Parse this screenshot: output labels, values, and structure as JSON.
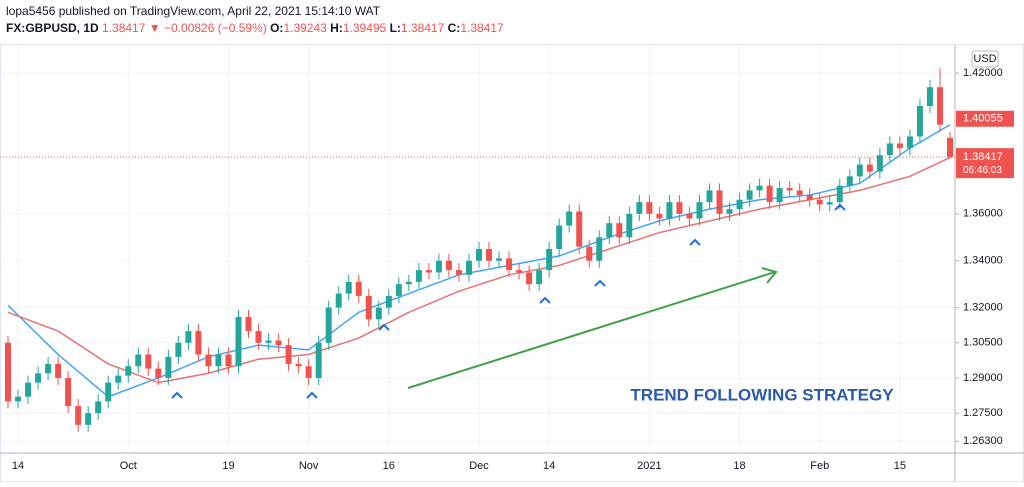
{
  "header": {
    "publisher": "lopa5456 published on TradingView.com, April 22, 2021 15:14:10 WAT",
    "symbol": "FX:GBPUSD, 1D",
    "last": "1.38417",
    "arrow": "▼",
    "change": "−0.00826 (−0.59%)",
    "o_label": "O:",
    "o": "1.39243",
    "h_label": "H:",
    "h": "1.39495",
    "l_label": "L:",
    "l": "1.38417",
    "c_label": "C:",
    "c": "1.38417"
  },
  "chart_data": {
    "type": "candlestick",
    "currency": "USD",
    "annotation": "TREND FOLLOWING STRATEGY",
    "categories": [
      null,
      "14",
      null,
      null,
      null,
      null,
      null,
      null,
      null,
      null,
      null,
      null,
      "Oct",
      null,
      null,
      null,
      null,
      null,
      null,
      null,
      null,
      null,
      "19",
      null,
      null,
      null,
      null,
      null,
      null,
      null,
      "Nov",
      null,
      null,
      null,
      null,
      null,
      null,
      null,
      "16",
      null,
      null,
      null,
      null,
      null,
      null,
      null,
      null,
      "Dec",
      null,
      null,
      null,
      null,
      null,
      null,
      "14",
      null,
      null,
      null,
      null,
      null,
      null,
      null,
      null,
      null,
      "2021",
      null,
      null,
      null,
      null,
      null,
      null,
      null,
      null,
      "18",
      null,
      null,
      null,
      null,
      null,
      null,
      null,
      "Feb",
      null,
      null,
      null,
      null,
      null,
      null,
      null,
      "15",
      null,
      null,
      null,
      null,
      null
    ],
    "open": [
      1.305,
      1.28,
      1.282,
      1.288,
      1.292,
      1.296,
      1.29,
      1.278,
      1.27,
      1.275,
      1.28,
      1.288,
      1.291,
      1.295,
      1.3,
      1.294,
      1.29,
      1.299,
      1.305,
      1.31,
      1.3,
      1.295,
      1.3,
      1.295,
      1.316,
      1.31,
      1.305,
      1.306,
      1.304,
      1.296,
      1.295,
      1.29,
      1.305,
      1.32,
      1.326,
      1.331,
      1.325,
      1.315,
      1.32,
      1.325,
      1.33,
      1.331,
      1.336,
      1.335,
      1.34,
      1.336,
      1.334,
      1.34,
      1.345,
      1.34,
      1.341,
      1.336,
      1.335,
      1.33,
      1.336,
      1.345,
      1.355,
      1.361,
      1.346,
      1.34,
      1.35,
      1.356,
      1.35,
      1.36,
      1.365,
      1.36,
      1.358,
      1.365,
      1.36,
      1.358,
      1.365,
      1.37,
      1.36,
      1.362,
      1.366,
      1.37,
      1.372,
      1.365,
      1.371,
      1.37,
      1.368,
      1.366,
      1.364,
      1.365,
      1.372,
      1.376,
      1.381,
      1.378,
      1.385,
      1.39,
      1.388,
      1.393,
      1.406,
      1.414,
      1.39243
    ],
    "high": [
      1.308,
      1.285,
      1.291,
      1.295,
      1.299,
      1.299,
      1.293,
      1.281,
      1.278,
      1.283,
      1.291,
      1.294,
      1.298,
      1.303,
      1.303,
      1.297,
      1.302,
      1.308,
      1.313,
      1.313,
      1.303,
      1.303,
      1.303,
      1.319,
      1.319,
      1.313,
      1.309,
      1.309,
      1.307,
      1.299,
      1.298,
      1.308,
      1.323,
      1.329,
      1.334,
      1.334,
      1.328,
      1.323,
      1.328,
      1.333,
      1.334,
      1.339,
      1.339,
      1.343,
      1.343,
      1.339,
      1.343,
      1.348,
      1.348,
      1.344,
      1.344,
      1.339,
      1.338,
      1.339,
      1.348,
      1.358,
      1.364,
      1.364,
      1.349,
      1.353,
      1.359,
      1.359,
      1.363,
      1.368,
      1.368,
      1.363,
      1.368,
      1.368,
      1.363,
      1.368,
      1.373,
      1.373,
      1.365,
      1.369,
      1.373,
      1.375,
      1.375,
      1.374,
      1.374,
      1.373,
      1.371,
      1.369,
      1.368,
      1.375,
      1.379,
      1.384,
      1.384,
      1.388,
      1.393,
      1.393,
      1.396,
      1.409,
      1.417,
      1.422,
      1.39495
    ],
    "low": [
      1.277,
      1.277,
      1.279,
      1.285,
      1.289,
      1.287,
      1.275,
      1.267,
      1.267,
      1.272,
      1.277,
      1.285,
      1.288,
      1.292,
      1.291,
      1.287,
      1.287,
      1.296,
      1.302,
      1.297,
      1.292,
      1.292,
      1.292,
      1.292,
      1.307,
      1.302,
      1.302,
      1.301,
      1.293,
      1.292,
      1.287,
      1.287,
      1.302,
      1.317,
      1.323,
      1.322,
      1.312,
      1.312,
      1.317,
      1.322,
      1.327,
      1.328,
      1.332,
      1.332,
      1.333,
      1.331,
      1.331,
      1.337,
      1.337,
      1.337,
      1.333,
      1.332,
      1.327,
      1.327,
      1.333,
      1.342,
      1.352,
      1.343,
      1.337,
      1.337,
      1.347,
      1.347,
      1.347,
      1.357,
      1.357,
      1.355,
      1.355,
      1.357,
      1.355,
      1.355,
      1.362,
      1.357,
      1.357,
      1.359,
      1.363,
      1.367,
      1.362,
      1.362,
      1.367,
      1.365,
      1.363,
      1.361,
      1.361,
      1.362,
      1.369,
      1.373,
      1.375,
      1.375,
      1.382,
      1.385,
      1.385,
      1.39,
      1.403,
      1.395,
      1.38417
    ],
    "close": [
      1.28,
      1.282,
      1.288,
      1.292,
      1.296,
      1.29,
      1.278,
      1.27,
      1.275,
      1.28,
      1.288,
      1.291,
      1.295,
      1.3,
      1.294,
      1.29,
      1.299,
      1.305,
      1.31,
      1.3,
      1.295,
      1.3,
      1.295,
      1.316,
      1.31,
      1.305,
      1.306,
      1.304,
      1.296,
      1.295,
      1.29,
      1.305,
      1.32,
      1.326,
      1.331,
      1.325,
      1.315,
      1.32,
      1.325,
      1.33,
      1.331,
      1.336,
      1.335,
      1.34,
      1.336,
      1.334,
      1.34,
      1.345,
      1.34,
      1.341,
      1.336,
      1.335,
      1.33,
      1.336,
      1.345,
      1.355,
      1.361,
      1.346,
      1.34,
      1.35,
      1.356,
      1.35,
      1.36,
      1.365,
      1.36,
      1.358,
      1.365,
      1.36,
      1.358,
      1.365,
      1.37,
      1.36,
      1.362,
      1.366,
      1.37,
      1.372,
      1.365,
      1.371,
      1.37,
      1.368,
      1.366,
      1.364,
      1.365,
      1.372,
      1.376,
      1.381,
      1.378,
      1.385,
      1.39,
      1.388,
      1.393,
      1.406,
      1.414,
      1.398,
      1.38417
    ],
    "up_color": "#26a69a",
    "down_color": "#ef5350",
    "series": [
      {
        "color": "#42a5f5",
        "x": [
          0,
          5,
          10,
          15,
          20,
          25,
          30,
          35,
          40,
          45,
          50,
          55,
          60,
          65,
          70,
          75,
          80,
          85,
          90,
          94
        ],
        "values": [
          1.321,
          1.3,
          1.282,
          1.29,
          1.299,
          1.304,
          1.302,
          1.318,
          1.326,
          1.334,
          1.338,
          1.342,
          1.35,
          1.357,
          1.362,
          1.366,
          1.368,
          1.373,
          1.388,
          1.398
        ]
      },
      {
        "color": "#e57373",
        "x": [
          0,
          5,
          10,
          15,
          20,
          25,
          30,
          35,
          40,
          45,
          50,
          55,
          60,
          65,
          70,
          75,
          80,
          85,
          90,
          94
        ],
        "values": [
          1.318,
          1.31,
          1.296,
          1.288,
          1.292,
          1.298,
          1.3,
          1.307,
          1.318,
          1.327,
          1.334,
          1.338,
          1.345,
          1.352,
          1.357,
          1.362,
          1.366,
          1.37,
          1.376,
          1.384
        ]
      }
    ],
    "ylim": [
      1.258,
      1.432
    ],
    "yticks": [
      {
        "value": 1.42,
        "label": "1.42000"
      },
      {
        "value": 1.36,
        "label": "1.36000"
      },
      {
        "value": 1.34,
        "label": "1.34000"
      },
      {
        "value": 1.32,
        "label": "1.32000"
      },
      {
        "value": 1.305,
        "label": "1.30500"
      },
      {
        "value": 1.29,
        "label": "1.29000"
      },
      {
        "value": 1.275,
        "label": "1.27500"
      },
      {
        "value": 1.263,
        "label": "1.26300"
      }
    ],
    "marker_price": 1.40055,
    "last_price": 1.38417,
    "countdown": "06:46:03"
  }
}
